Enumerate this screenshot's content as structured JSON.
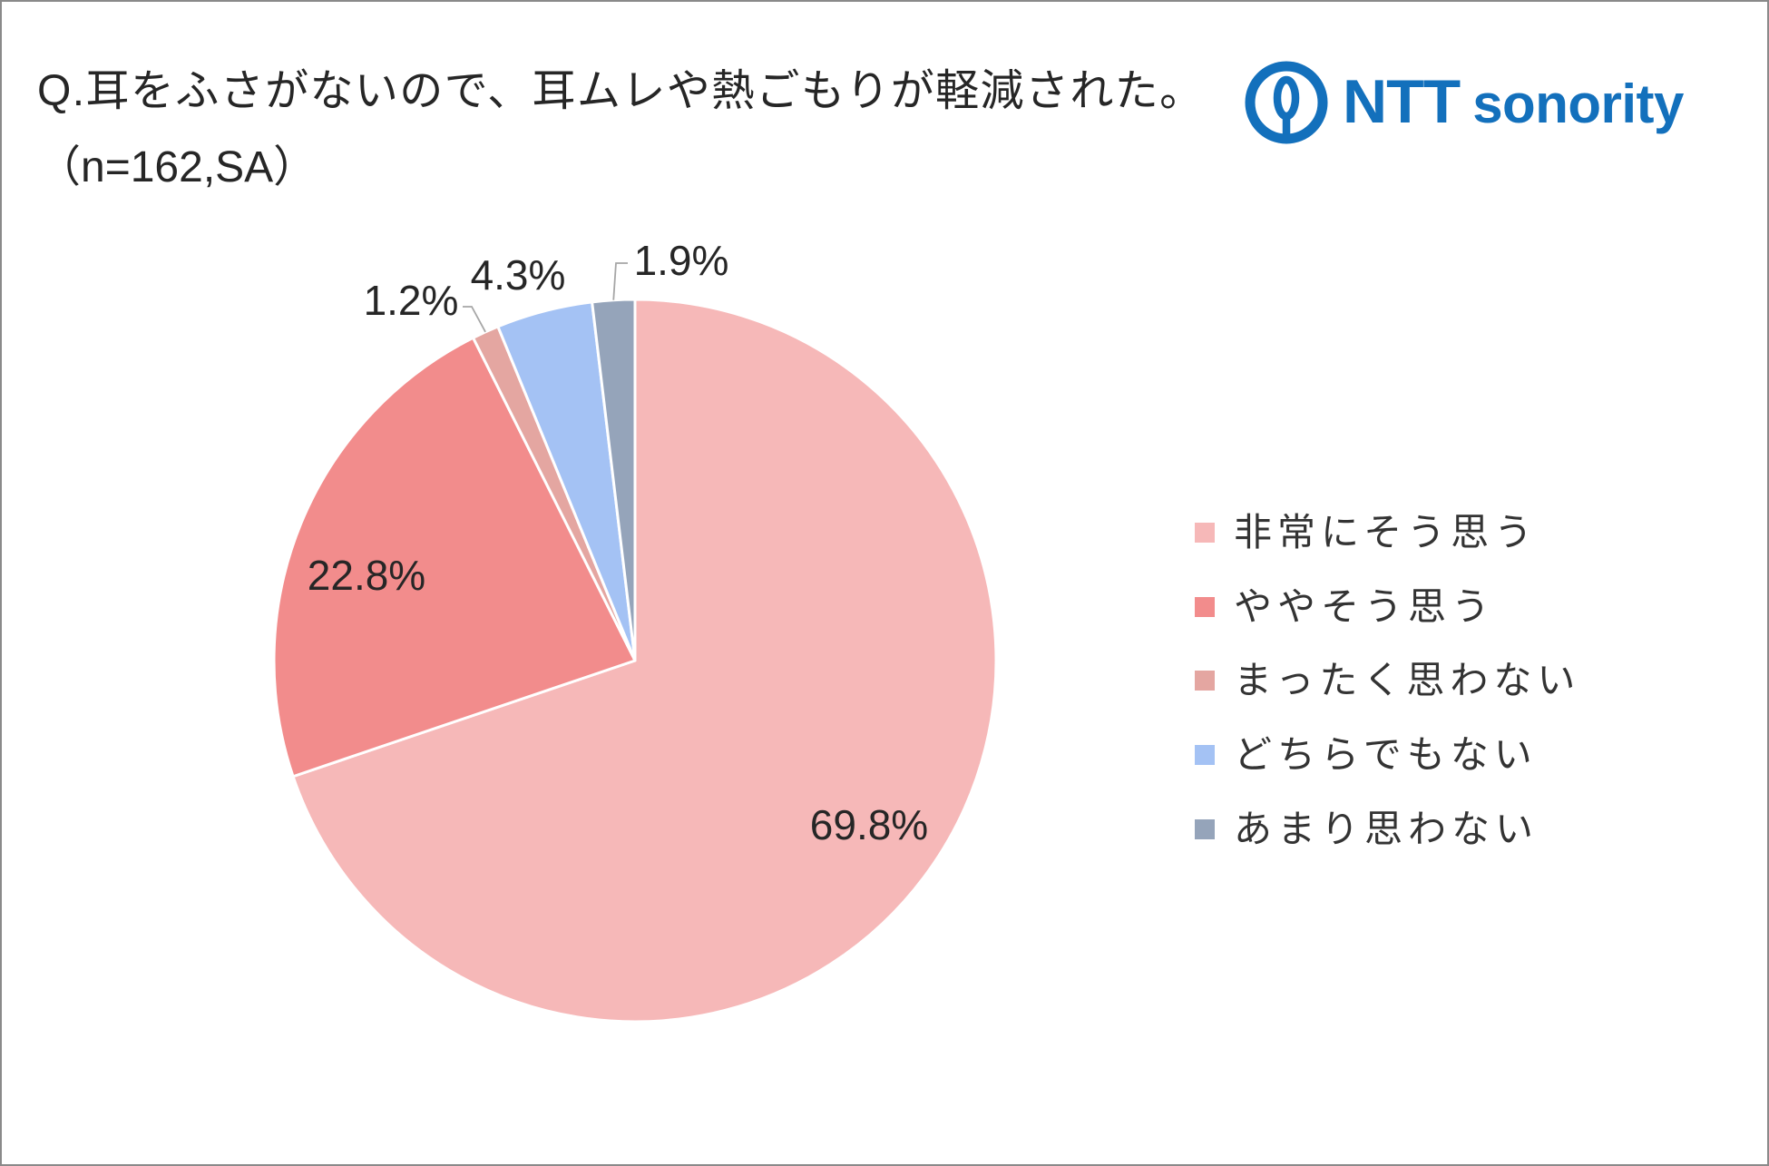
{
  "logo": {
    "icon": "ntt-loop-icon",
    "brand": "NTT",
    "product": "sonority",
    "color": "#1370BC"
  },
  "chart_data": {
    "type": "pie",
    "title": "Q.耳をふさがないので、耳ムレや熱ごもりが軽減された。",
    "subtitle": "（n=162,SA）",
    "categories": [
      "非常にそう思う",
      "ややそう思う",
      "まったく思わない",
      "どちらでもない",
      "あまり思わない"
    ],
    "values": [
      69.8,
      22.8,
      1.2,
      4.3,
      1.9
    ],
    "data_labels": [
      "69.8%",
      "22.8%",
      "1.2%",
      "4.3%",
      "1.9%"
    ],
    "colors": [
      "#F6B8B8",
      "#F28C8C",
      "#E4A6A1",
      "#A4C2F4",
      "#95A4BA"
    ],
    "legend_position": "right"
  }
}
